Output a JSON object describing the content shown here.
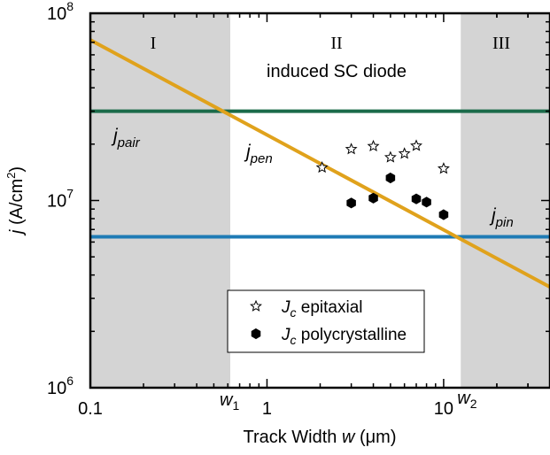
{
  "chart_data": {
    "type": "scatter",
    "xlabel": "Track Width",
    "xlabel_var": "w",
    "xlabel_unit": "(μm)",
    "ylabel_var": "j",
    "ylabel_unit": "(A/cm",
    "ylabel_sup": "2",
    "ylabel_close": ")",
    "xscale": "log",
    "yscale": "log",
    "xlim": [
      0.1,
      40
    ],
    "ylim": [
      1000000,
      100000000
    ],
    "x_ticks": [
      {
        "value": 0.1,
        "label": "0.1"
      },
      {
        "value": 1,
        "label": "1"
      },
      {
        "value": 10,
        "label": "10"
      }
    ],
    "y_ticks": [
      {
        "value": 1000000,
        "base": "10",
        "exp": "6"
      },
      {
        "value": 10000000,
        "base": "10",
        "exp": "7"
      },
      {
        "value": 100000000,
        "base": "10",
        "exp": "8"
      }
    ],
    "regions": [
      {
        "label": "I",
        "x_from": 0.1,
        "x_to": 0.62,
        "color": "#d4d4d4"
      },
      {
        "label": "II",
        "x_from": 0.62,
        "x_to": 12.5,
        "color": "#ffffff"
      },
      {
        "label": "III",
        "x_from": 12.5,
        "x_to": 40,
        "color": "#d4d4d4"
      }
    ],
    "region_caption": "induced SC diode",
    "boundaries": [
      {
        "x": 0.62,
        "label": "w",
        "sub": "1"
      },
      {
        "x": 12.5,
        "label": "w",
        "sub": "2"
      }
    ],
    "lines": [
      {
        "name": "j",
        "sub": "pair",
        "kind": "horizontal",
        "y": 30000000,
        "color": "#1b6b4a"
      },
      {
        "name": "j",
        "sub": "pin",
        "kind": "horizontal",
        "y": 6400000,
        "color": "#1e7bb5"
      },
      {
        "name": "j",
        "sub": "pen",
        "kind": "segment",
        "x": [
          0.1,
          40
        ],
        "y": [
          72000000,
          3450000
        ],
        "color": "#e0a21c"
      }
    ],
    "series": [
      {
        "name": "epitaxial",
        "label_var": "J",
        "label_sub": "c",
        "marker": "star",
        "points": [
          {
            "x": 2.05,
            "y": 15000000
          },
          {
            "x": 3.0,
            "y": 18800000
          },
          {
            "x": 4.0,
            "y": 19500000
          },
          {
            "x": 5.0,
            "y": 17000000
          },
          {
            "x": 6.0,
            "y": 17800000
          },
          {
            "x": 7.0,
            "y": 19600000
          },
          {
            "x": 10.0,
            "y": 14800000
          }
        ]
      },
      {
        "name": "polycrystalline",
        "label_var": "J",
        "label_sub": "c",
        "marker": "hexagon",
        "points": [
          {
            "x": 3.0,
            "y": 9700000
          },
          {
            "x": 4.0,
            "y": 10300000
          },
          {
            "x": 5.0,
            "y": 13200000
          },
          {
            "x": 7.0,
            "y": 10200000
          },
          {
            "x": 8.0,
            "y": 9800000
          },
          {
            "x": 10.0,
            "y": 8400000
          }
        ]
      }
    ],
    "legend_position": "lower-center",
    "grid": false
  }
}
